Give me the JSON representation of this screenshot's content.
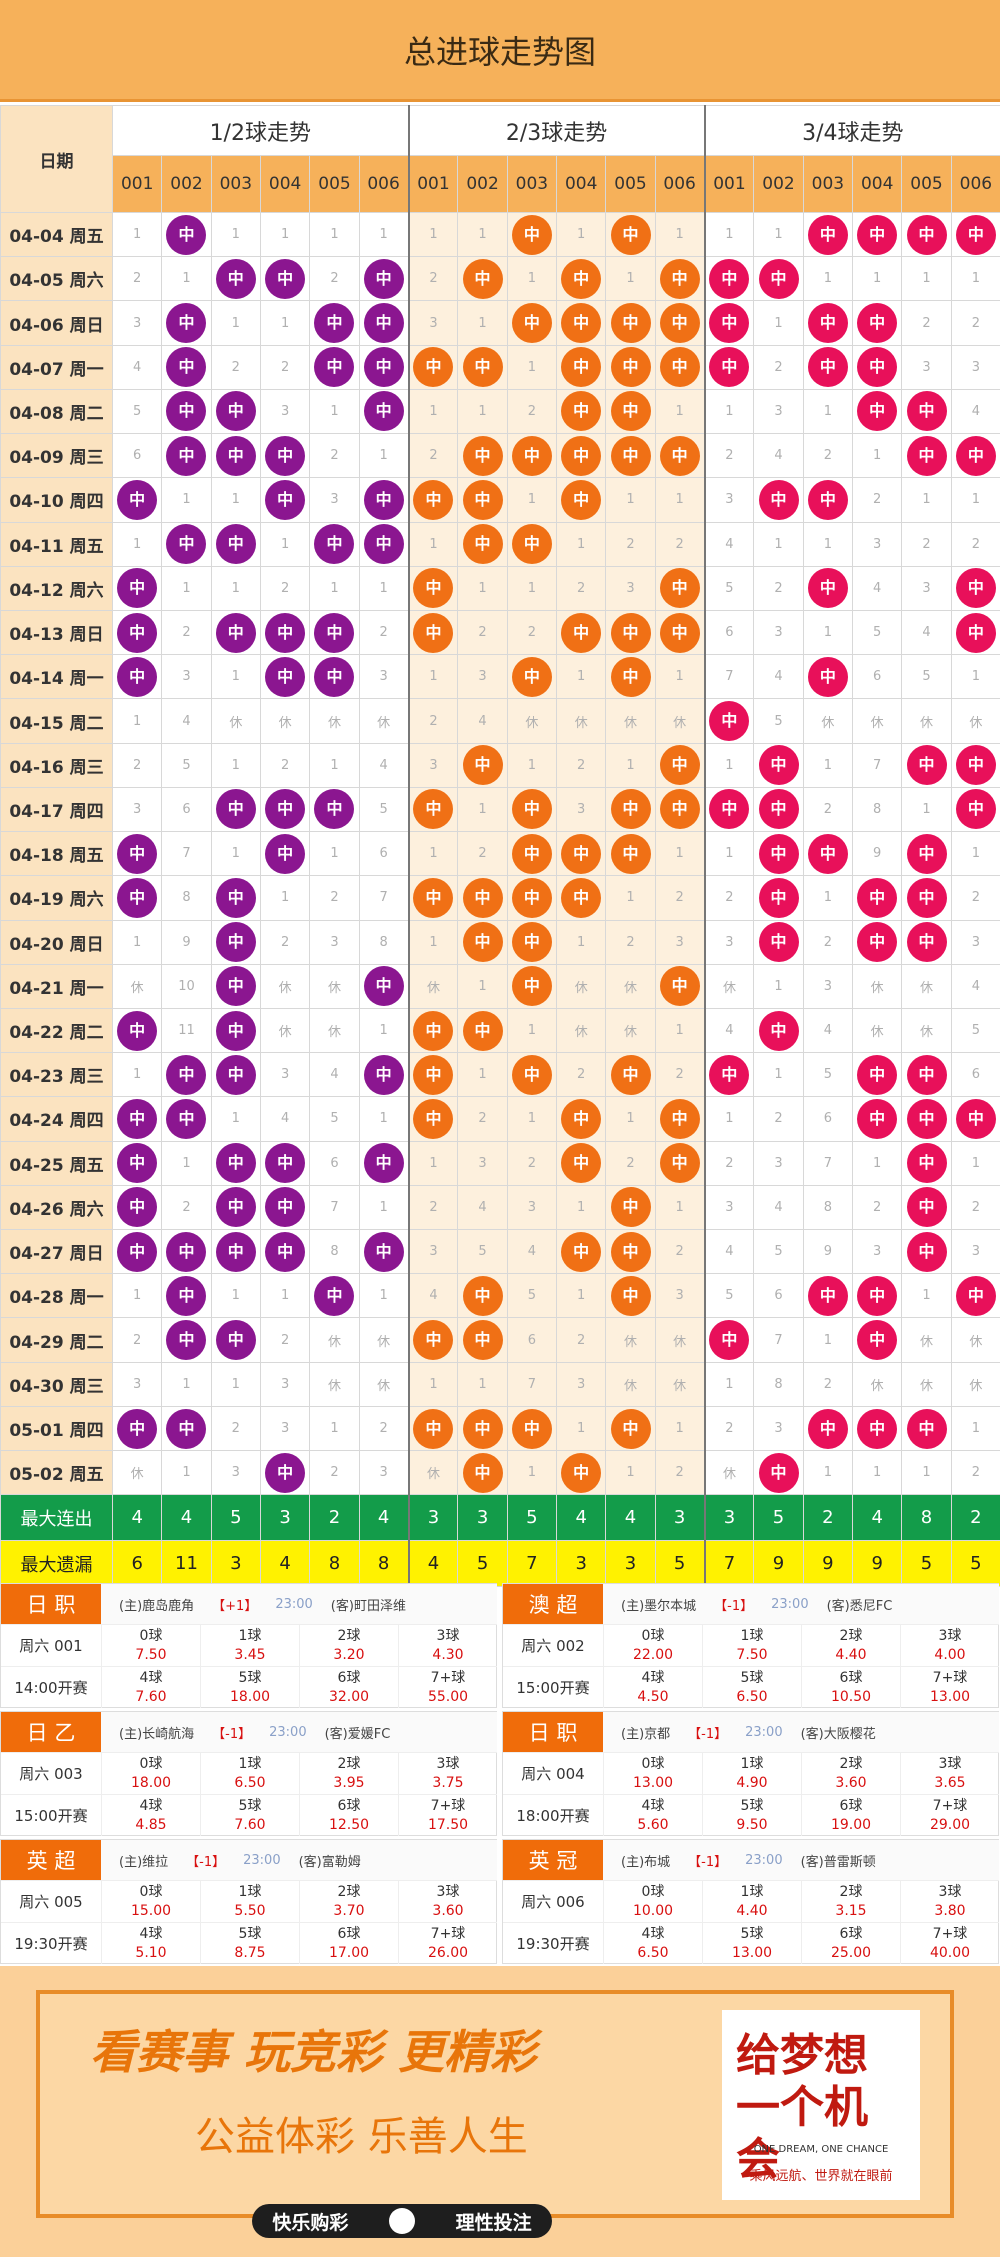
{
  "title": "总进球走势图",
  "grid": {
    "date_header": "日期",
    "groups": [
      "1/2球走势",
      "2/3球走势",
      "3/4球走势"
    ],
    "cols": [
      "001",
      "002",
      "003",
      "004",
      "005",
      "006"
    ],
    "hit": "中",
    "rows": [
      {
        "d": "04-04 周五",
        "c": [
          "1",
          "中",
          "1",
          "1",
          "1",
          "1",
          "1",
          "1",
          "中",
          "1",
          "中",
          "1",
          "1",
          "1",
          "中",
          "中",
          "中",
          "中"
        ]
      },
      {
        "d": "04-05 周六",
        "c": [
          "2",
          "1",
          "中",
          "中",
          "2",
          "中",
          "2",
          "中",
          "1",
          "中",
          "1",
          "中",
          "中",
          "中",
          "1",
          "1",
          "1",
          "1"
        ]
      },
      {
        "d": "04-06 周日",
        "c": [
          "3",
          "中",
          "1",
          "1",
          "中",
          "中",
          "3",
          "1",
          "中",
          "中",
          "中",
          "中",
          "中",
          "1",
          "中",
          "中",
          "2",
          "2"
        ]
      },
      {
        "d": "04-07 周一",
        "c": [
          "4",
          "中",
          "2",
          "2",
          "中",
          "中",
          "中",
          "中",
          "1",
          "中",
          "中",
          "中",
          "中",
          "2",
          "中",
          "中",
          "3",
          "3"
        ]
      },
      {
        "d": "04-08 周二",
        "c": [
          "5",
          "中",
          "中",
          "3",
          "1",
          "中",
          "1",
          "1",
          "2",
          "中",
          "中",
          "1",
          "1",
          "3",
          "1",
          "中",
          "中",
          "4"
        ]
      },
      {
        "d": "04-09 周三",
        "c": [
          "6",
          "中",
          "中",
          "中",
          "2",
          "1",
          "2",
          "中",
          "中",
          "中",
          "中",
          "中",
          "2",
          "4",
          "2",
          "1",
          "中",
          "中"
        ]
      },
      {
        "d": "04-10 周四",
        "c": [
          "中",
          "1",
          "1",
          "中",
          "3",
          "中",
          "中",
          "中",
          "1",
          "中",
          "1",
          "1",
          "3",
          "中",
          "中",
          "2",
          "1",
          "1"
        ]
      },
      {
        "d": "04-11 周五",
        "c": [
          "1",
          "中",
          "中",
          "1",
          "中",
          "中",
          "1",
          "中",
          "中",
          "1",
          "2",
          "2",
          "4",
          "1",
          "1",
          "3",
          "2",
          "2"
        ]
      },
      {
        "d": "04-12 周六",
        "c": [
          "中",
          "1",
          "1",
          "2",
          "1",
          "1",
          "中",
          "1",
          "1",
          "2",
          "3",
          "中",
          "5",
          "2",
          "中",
          "4",
          "3",
          "中"
        ]
      },
      {
        "d": "04-13 周日",
        "c": [
          "中",
          "2",
          "中",
          "中",
          "中",
          "2",
          "中",
          "2",
          "2",
          "中",
          "中",
          "中",
          "6",
          "3",
          "1",
          "5",
          "4",
          "中"
        ]
      },
      {
        "d": "04-14 周一",
        "c": [
          "中",
          "3",
          "1",
          "中",
          "中",
          "3",
          "1",
          "3",
          "中",
          "1",
          "中",
          "1",
          "7",
          "4",
          "中",
          "6",
          "5",
          "1"
        ]
      },
      {
        "d": "04-15 周二",
        "c": [
          "1",
          "4",
          "休",
          "休",
          "休",
          "休",
          "2",
          "4",
          "休",
          "休",
          "休",
          "休",
          "中",
          "5",
          "休",
          "休",
          "休",
          "休"
        ]
      },
      {
        "d": "04-16 周三",
        "c": [
          "2",
          "5",
          "1",
          "2",
          "1",
          "4",
          "3",
          "中",
          "1",
          "2",
          "1",
          "中",
          "1",
          "中",
          "1",
          "7",
          "中",
          "中"
        ]
      },
      {
        "d": "04-17 周四",
        "c": [
          "3",
          "6",
          "中",
          "中",
          "中",
          "5",
          "中",
          "1",
          "中",
          "3",
          "中",
          "中",
          "中",
          "中",
          "2",
          "8",
          "1",
          "中"
        ]
      },
      {
        "d": "04-18 周五",
        "c": [
          "中",
          "7",
          "1",
          "中",
          "1",
          "6",
          "1",
          "2",
          "中",
          "中",
          "中",
          "1",
          "1",
          "中",
          "中",
          "9",
          "中",
          "1"
        ]
      },
      {
        "d": "04-19 周六",
        "c": [
          "中",
          "8",
          "中",
          "1",
          "2",
          "7",
          "中",
          "中",
          "中",
          "中",
          "1",
          "2",
          "2",
          "中",
          "1",
          "中",
          "中",
          "2"
        ]
      },
      {
        "d": "04-20 周日",
        "c": [
          "1",
          "9",
          "中",
          "2",
          "3",
          "8",
          "1",
          "中",
          "中",
          "1",
          "2",
          "3",
          "3",
          "中",
          "2",
          "中",
          "中",
          "3"
        ]
      },
      {
        "d": "04-21 周一",
        "c": [
          "休",
          "10",
          "中",
          "休",
          "休",
          "中",
          "休",
          "1",
          "中",
          "休",
          "休",
          "中",
          "休",
          "1",
          "3",
          "休",
          "休",
          "4"
        ]
      },
      {
        "d": "04-22 周二",
        "c": [
          "中",
          "11",
          "中",
          "休",
          "休",
          "1",
          "中",
          "中",
          "1",
          "休",
          "休",
          "1",
          "4",
          "中",
          "4",
          "休",
          "休",
          "5"
        ]
      },
      {
        "d": "04-23 周三",
        "c": [
          "1",
          "中",
          "中",
          "3",
          "4",
          "中",
          "中",
          "1",
          "中",
          "2",
          "中",
          "2",
          "中",
          "1",
          "5",
          "中",
          "中",
          "6"
        ]
      },
      {
        "d": "04-24 周四",
        "c": [
          "中",
          "中",
          "1",
          "4",
          "5",
          "1",
          "中",
          "2",
          "1",
          "中",
          "1",
          "中",
          "1",
          "2",
          "6",
          "中",
          "中",
          "中"
        ]
      },
      {
        "d": "04-25 周五",
        "c": [
          "中",
          "1",
          "中",
          "中",
          "6",
          "中",
          "1",
          "3",
          "2",
          "中",
          "2",
          "中",
          "2",
          "3",
          "7",
          "1",
          "中",
          "1"
        ]
      },
      {
        "d": "04-26 周六",
        "c": [
          "中",
          "2",
          "中",
          "中",
          "7",
          "1",
          "2",
          "4",
          "3",
          "1",
          "中",
          "1",
          "3",
          "4",
          "8",
          "2",
          "中",
          "2"
        ]
      },
      {
        "d": "04-27 周日",
        "c": [
          "中",
          "中",
          "中",
          "中",
          "8",
          "中",
          "3",
          "5",
          "4",
          "中",
          "中",
          "2",
          "4",
          "5",
          "9",
          "3",
          "中",
          "3"
        ]
      },
      {
        "d": "04-28 周一",
        "c": [
          "1",
          "中",
          "1",
          "1",
          "中",
          "1",
          "4",
          "中",
          "5",
          "1",
          "中",
          "3",
          "5",
          "6",
          "中",
          "中",
          "1",
          "中"
        ]
      },
      {
        "d": "04-29 周二",
        "c": [
          "2",
          "中",
          "中",
          "2",
          "休",
          "休",
          "中",
          "中",
          "6",
          "2",
          "休",
          "休",
          "中",
          "7",
          "1",
          "中",
          "休",
          "休"
        ]
      },
      {
        "d": "04-30 周三",
        "c": [
          "3",
          "1",
          "1",
          "3",
          "休",
          "休",
          "1",
          "1",
          "7",
          "3",
          "休",
          "休",
          "1",
          "8",
          "2",
          "休",
          "休",
          "休"
        ]
      },
      {
        "d": "05-01 周四",
        "c": [
          "中",
          "中",
          "2",
          "3",
          "1",
          "2",
          "中",
          "中",
          "中",
          "1",
          "中",
          "1",
          "2",
          "3",
          "中",
          "中",
          "中",
          "1"
        ]
      },
      {
        "d": "05-02 周五",
        "c": [
          "休",
          "1",
          "3",
          "中",
          "2",
          "3",
          "休",
          "中",
          "1",
          "中",
          "1",
          "2",
          "休",
          "中",
          "1",
          "1",
          "1",
          "2"
        ]
      }
    ],
    "sum1_label": "最大连出",
    "sum1": [
      "4",
      "4",
      "5",
      "3",
      "2",
      "4",
      "3",
      "3",
      "5",
      "4",
      "4",
      "3",
      "3",
      "5",
      "2",
      "4",
      "8",
      "2"
    ],
    "sum2_label": "最大遗漏",
    "sum2": [
      "6",
      "11",
      "3",
      "4",
      "8",
      "8",
      "4",
      "5",
      "7",
      "3",
      "3",
      "5",
      "7",
      "9",
      "9",
      "9",
      "5",
      "5"
    ]
  },
  "matches": [
    {
      "league": "日 职",
      "home": "(主)鹿岛鹿角",
      "hcp": "【+1】",
      "time": "23:00",
      "away": "(客)町田泽维",
      "day": "周六 001",
      "kick": "14:00开赛",
      "odds": [
        [
          "0球",
          "7.50"
        ],
        [
          "1球",
          "3.45"
        ],
        [
          "2球",
          "3.20"
        ],
        [
          "3球",
          "4.30"
        ],
        [
          "4球",
          "7.60"
        ],
        [
          "5球",
          "18.00"
        ],
        [
          "6球",
          "32.00"
        ],
        [
          "7+球",
          "55.00"
        ]
      ]
    },
    {
      "league": "澳 超",
      "home": "(主)墨尔本城",
      "hcp": "【-1】",
      "time": "23:00",
      "away": "(客)悉尼FC",
      "day": "周六 002",
      "kick": "15:00开赛",
      "odds": [
        [
          "0球",
          "22.00"
        ],
        [
          "1球",
          "7.50"
        ],
        [
          "2球",
          "4.40"
        ],
        [
          "3球",
          "4.00"
        ],
        [
          "4球",
          "4.50"
        ],
        [
          "5球",
          "6.50"
        ],
        [
          "6球",
          "10.50"
        ],
        [
          "7+球",
          "13.00"
        ]
      ]
    },
    {
      "league": "日 乙",
      "home": "(主)长崎航海",
      "hcp": "【-1】",
      "time": "23:00",
      "away": "(客)爱媛FC",
      "day": "周六 003",
      "kick": "15:00开赛",
      "odds": [
        [
          "0球",
          "18.00"
        ],
        [
          "1球",
          "6.50"
        ],
        [
          "2球",
          "3.95"
        ],
        [
          "3球",
          "3.75"
        ],
        [
          "4球",
          "4.85"
        ],
        [
          "5球",
          "7.60"
        ],
        [
          "6球",
          "12.50"
        ],
        [
          "7+球",
          "17.50"
        ]
      ]
    },
    {
      "league": "日 职",
      "home": "(主)京都",
      "hcp": "【-1】",
      "time": "23:00",
      "away": "(客)大阪樱花",
      "day": "周六 004",
      "kick": "18:00开赛",
      "odds": [
        [
          "0球",
          "13.00"
        ],
        [
          "1球",
          "4.90"
        ],
        [
          "2球",
          "3.60"
        ],
        [
          "3球",
          "3.65"
        ],
        [
          "4球",
          "5.60"
        ],
        [
          "5球",
          "9.50"
        ],
        [
          "6球",
          "19.00"
        ],
        [
          "7+球",
          "29.00"
        ]
      ]
    },
    {
      "league": "英 超",
      "home": "(主)维拉",
      "hcp": "【-1】",
      "time": "23:00",
      "away": "(客)富勒姆",
      "day": "周六 005",
      "kick": "19:30开赛",
      "odds": [
        [
          "0球",
          "15.00"
        ],
        [
          "1球",
          "5.50"
        ],
        [
          "2球",
          "3.70"
        ],
        [
          "3球",
          "3.60"
        ],
        [
          "4球",
          "5.10"
        ],
        [
          "5球",
          "8.75"
        ],
        [
          "6球",
          "17.00"
        ],
        [
          "7+球",
          "26.00"
        ]
      ]
    },
    {
      "league": "英 冠",
      "home": "(主)布城",
      "hcp": "【-1】",
      "time": "23:00",
      "away": "(客)普雷斯顿",
      "day": "周六 006",
      "kick": "19:30开赛",
      "odds": [
        [
          "0球",
          "10.00"
        ],
        [
          "1球",
          "4.40"
        ],
        [
          "2球",
          "3.15"
        ],
        [
          "3球",
          "3.80"
        ],
        [
          "4球",
          "6.50"
        ],
        [
          "5球",
          "13.00"
        ],
        [
          "6球",
          "25.00"
        ],
        [
          "7+球",
          "40.00"
        ]
      ]
    }
  ],
  "ad": {
    "slogan1": "看赛事 玩竞彩 更精彩",
    "slogan2": "公益体彩 乐善人生",
    "logo_main": "给梦想一个机会",
    "logo_en": "ONE DREAM, ONE CHANCE",
    "logo_sub": "乘风远航、世界就在眼前",
    "bar_left": "快乐购彩",
    "bar_right": "理性投注"
  },
  "colors": {
    "g1": "#8b1690",
    "g2": "#f07015",
    "g3": "#e8105a"
  }
}
